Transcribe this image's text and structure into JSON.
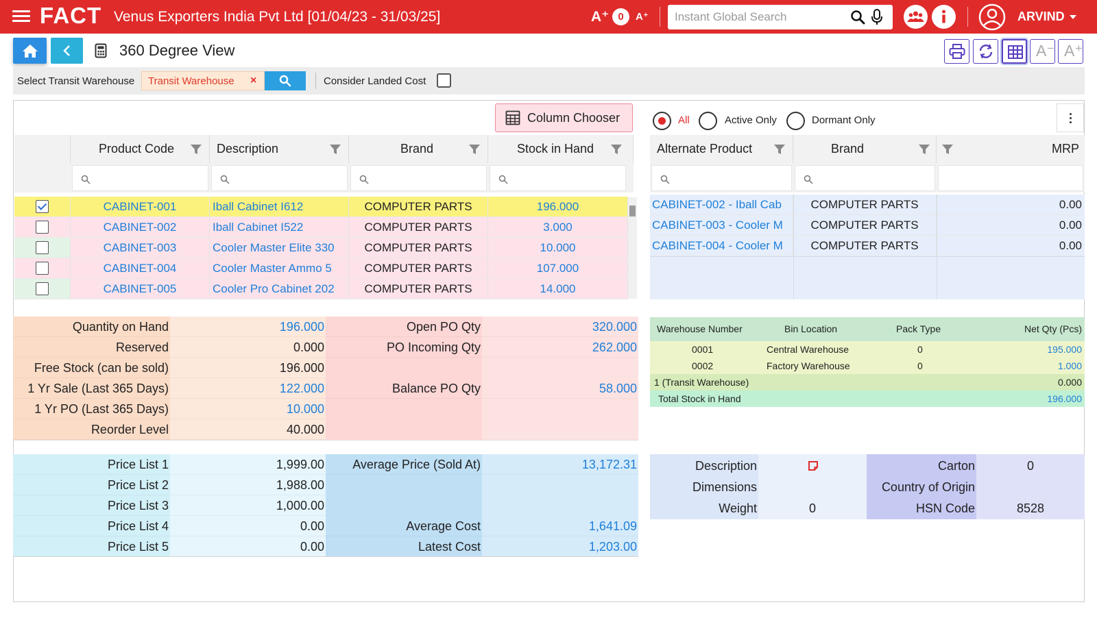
{
  "header": {
    "logo": "FACT",
    "company": "Venus Exporters India Pvt Ltd [01/04/23 - 31/03/25]",
    "font_increase": "A⁺",
    "zoom_level": "0",
    "font_decrease": "A⁺",
    "search_placeholder": "Instant Global Search",
    "user": "ARVIND"
  },
  "toolbar": {
    "page_title": "360 Degree View",
    "font_small": "A⁻",
    "font_large": "A⁺"
  },
  "filters": {
    "transit_label": "Select Transit Warehouse",
    "transit_value": "Transit Warehouse",
    "clear": "×",
    "landed_cost_label": "Consider Landed Cost",
    "landed_cost_checked": false
  },
  "products": {
    "column_chooser": "Column Chooser",
    "headers": [
      "Product Code",
      "Description",
      "Brand",
      "Stock in Hand"
    ],
    "rows": [
      {
        "code": "CABINET-001",
        "description": "Iball Cabinet I612",
        "brand": "COMPUTER PARTS",
        "stock": "196.000",
        "checked": true
      },
      {
        "code": "CABINET-002",
        "description": "Iball Cabinet I522",
        "brand": "COMPUTER PARTS",
        "stock": "3.000",
        "checked": false
      },
      {
        "code": "CABINET-003",
        "description": "Cooler Master Elite 330",
        "brand": "COMPUTER PARTS",
        "stock": "10.000",
        "checked": false
      },
      {
        "code": "CABINET-004",
        "description": "Cooler Master Ammo 5",
        "brand": "COMPUTER PARTS",
        "stock": "107.000",
        "checked": false
      },
      {
        "code": "CABINET-005",
        "description": "Cooler Pro Cabinet 202",
        "brand": "COMPUTER PARTS",
        "stock": "14.000",
        "checked": false
      }
    ]
  },
  "status_filter": {
    "options": [
      "All",
      "Active Only",
      "Dormant Only"
    ],
    "selected": "All"
  },
  "alternates": {
    "headers": [
      "Alternate Product",
      "Brand",
      "MRP"
    ],
    "rows": [
      {
        "product": "CABINET-002 - Iball Cab",
        "brand": "COMPUTER PARTS",
        "mrp": "0.00"
      },
      {
        "product": "CABINET-003 - Cooler M",
        "brand": "COMPUTER PARTS",
        "mrp": "0.00"
      },
      {
        "product": "CABINET-004 - Cooler M",
        "brand": "COMPUTER PARTS",
        "mrp": "0.00"
      }
    ]
  },
  "quantities": {
    "qty_on_hand": {
      "label": "Quantity on Hand",
      "value": "196.000"
    },
    "reserved": {
      "label": "Reserved",
      "value": "0.000"
    },
    "free_stock": {
      "label": "Free Stock (can be sold)",
      "value": "196.000"
    },
    "yr_sale": {
      "label": "1 Yr Sale (Last 365 Days)",
      "value": "122.000"
    },
    "yr_po": {
      "label": "1 Yr PO (Last 365 Days)",
      "value": "10.000"
    },
    "reorder": {
      "label": "Reorder Level",
      "value": "40.000"
    },
    "open_po": {
      "label": "Open PO Qty",
      "value": "320.000"
    },
    "po_incoming": {
      "label": "PO Incoming Qty",
      "value": "262.000"
    },
    "balance_po": {
      "label": "Balance PO Qty",
      "value": "58.000"
    }
  },
  "warehouses": {
    "headers": [
      "Warehouse Number",
      "Bin Location",
      "Pack Type",
      "Net Qty (Pcs)"
    ],
    "rows": [
      {
        "number": "0001",
        "bin": "Central Warehouse",
        "pack": "0",
        "qty": "195.000"
      },
      {
        "number": "0002",
        "bin": "Factory Warehouse",
        "pack": "0",
        "qty": "1.000"
      }
    ],
    "transit_label": "1 (Transit Warehouse)",
    "transit_qty": "0.000",
    "total_label": "Total Stock in Hand",
    "total_qty": "196.000"
  },
  "prices": {
    "pl1": {
      "label": "Price List 1",
      "value": "1,999.00"
    },
    "pl2": {
      "label": "Price List 2",
      "value": "1,988.00"
    },
    "pl3": {
      "label": "Price List 3",
      "value": "1,000.00"
    },
    "pl4": {
      "label": "Price List 4",
      "value": "0.00"
    },
    "pl5": {
      "label": "Price List 5",
      "value": "0.00"
    },
    "avg_price": {
      "label": "Average Price (Sold At)",
      "value": "13,172.31"
    },
    "avg_cost": {
      "label": "Average Cost",
      "value": "1,641.09"
    },
    "latest_cost": {
      "label": "Latest Cost",
      "value": "1,203.00"
    }
  },
  "item_info": {
    "description": {
      "label": "Description",
      "value": ""
    },
    "dimensions": {
      "label": "Dimensions",
      "value": ""
    },
    "weight": {
      "label": "Weight",
      "value": "0"
    },
    "carton": {
      "label": "Carton",
      "value": "0"
    },
    "origin": {
      "label": "Country of Origin",
      "value": ""
    },
    "hsn": {
      "label": "HSN Code",
      "value": "8528"
    }
  },
  "colors": {
    "brand_red": "#e02b2b",
    "link_blue": "#1f7fd8",
    "selected_row": "#fbf27e",
    "pink_row": "#fde2ea",
    "green_row": "#e3f3e6"
  }
}
